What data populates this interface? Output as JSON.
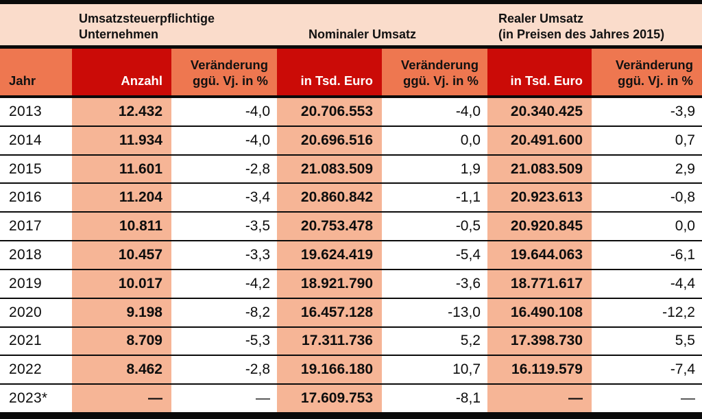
{
  "colors": {
    "header_red": "#cb0b07",
    "header_orange": "#ee7750",
    "column_salmon": "#f6b596",
    "band_pink": "#fadccb",
    "line_black": "#0a0a0a",
    "text_dark": "#0d0d0d",
    "text_white": "#ffffff"
  },
  "header_band": {
    "group_unternehmen": "Umsatzsteuerpflichtige\nUnternehmen",
    "group_nominal": "Nominaler Umsatz",
    "group_real": "Realer Umsatz\n(in Preisen des Jahres 2015)"
  },
  "columns": {
    "jahr": "Jahr",
    "anzahl": "Anzahl",
    "change": "Veränderung\nggü. Vj. in %",
    "tsd_euro": "in Tsd. Euro"
  },
  "rows": [
    {
      "year": "2013",
      "anzahl": "12.432",
      "anzahl_change": "-4,0",
      "nominal": "20.706.553",
      "nominal_change": "-4,0",
      "real": "20.340.425",
      "real_change": "-3,9"
    },
    {
      "year": "2014",
      "anzahl": "11.934",
      "anzahl_change": "-4,0",
      "nominal": "20.696.516",
      "nominal_change": "0,0",
      "real": "20.491.600",
      "real_change": "0,7"
    },
    {
      "year": "2015",
      "anzahl": "11.601",
      "anzahl_change": "-2,8",
      "nominal": "21.083.509",
      "nominal_change": "1,9",
      "real": "21.083.509",
      "real_change": "2,9"
    },
    {
      "year": "2016",
      "anzahl": "11.204",
      "anzahl_change": "-3,4",
      "nominal": "20.860.842",
      "nominal_change": "-1,1",
      "real": "20.923.613",
      "real_change": "-0,8"
    },
    {
      "year": "2017",
      "anzahl": "10.811",
      "anzahl_change": "-3,5",
      "nominal": "20.753.478",
      "nominal_change": "-0,5",
      "real": "20.920.845",
      "real_change": "0,0"
    },
    {
      "year": "2018",
      "anzahl": "10.457",
      "anzahl_change": "-3,3",
      "nominal": "19.624.419",
      "nominal_change": "-5,4",
      "real": "19.644.063",
      "real_change": "-6,1"
    },
    {
      "year": "2019",
      "anzahl": "10.017",
      "anzahl_change": "-4,2",
      "nominal": "18.921.790",
      "nominal_change": "-3,6",
      "real": "18.771.617",
      "real_change": "-4,4"
    },
    {
      "year": "2020",
      "anzahl": "9.198",
      "anzahl_change": "-8,2",
      "nominal": "16.457.128",
      "nominal_change": "-13,0",
      "real": "16.490.108",
      "real_change": "-12,2"
    },
    {
      "year": "2021",
      "anzahl": "8.709",
      "anzahl_change": "-5,3",
      "nominal": "17.311.736",
      "nominal_change": "5,2",
      "real": "17.398.730",
      "real_change": "5,5"
    },
    {
      "year": "2022",
      "anzahl": "8.462",
      "anzahl_change": "-2,8",
      "nominal": "19.166.180",
      "nominal_change": "10,7",
      "real": "16.119.579",
      "real_change": "-7,4"
    },
    {
      "year": "2023*",
      "anzahl": "—",
      "anzahl_change": "—",
      "nominal": "17.609.753",
      "nominal_change": "-8,1",
      "real": "—",
      "real_change": "—"
    }
  ],
  "chart_data": {
    "type": "table",
    "title": "Umsatzsteuerpflichtige Unternehmen, Nominaler Umsatz, Realer Umsatz (in Preisen des Jahres 2015)",
    "categories": [
      "2013",
      "2014",
      "2015",
      "2016",
      "2017",
      "2018",
      "2019",
      "2020",
      "2021",
      "2022",
      "2023*"
    ],
    "series": [
      {
        "name": "Umsatzsteuerpflichtige Unternehmen – Anzahl",
        "values": [
          12432,
          11934,
          11601,
          11204,
          10811,
          10457,
          10017,
          9198,
          8709,
          8462,
          null
        ]
      },
      {
        "name": "Umsatzsteuerpflichtige Unternehmen – Veränderung ggü. Vj. in %",
        "values": [
          -4.0,
          -4.0,
          -2.8,
          -3.4,
          -3.5,
          -3.3,
          -4.2,
          -8.2,
          -5.3,
          -2.8,
          null
        ]
      },
      {
        "name": "Nominaler Umsatz – in Tsd. Euro",
        "values": [
          20706553,
          20696516,
          21083509,
          20860842,
          20753478,
          19624419,
          18921790,
          16457128,
          17311736,
          19166180,
          17609753
        ]
      },
      {
        "name": "Nominaler Umsatz – Veränderung ggü. Vj. in %",
        "values": [
          -4.0,
          0.0,
          1.9,
          -1.1,
          -0.5,
          -5.4,
          -3.6,
          -13.0,
          5.2,
          10.7,
          -8.1
        ]
      },
      {
        "name": "Realer Umsatz (in Preisen des Jahres 2015) – in Tsd. Euro",
        "values": [
          20340425,
          20491600,
          21083509,
          20923613,
          20920845,
          19644063,
          18771617,
          16490108,
          17398730,
          16119579,
          null
        ]
      },
      {
        "name": "Realer Umsatz – Veränderung ggü. Vj. in %",
        "values": [
          -3.9,
          0.7,
          2.9,
          -0.8,
          0.0,
          -6.1,
          -4.4,
          -12.2,
          5.5,
          -7.4,
          null
        ]
      }
    ],
    "layout": "data table, 7 columns, salmon-shaded value columns, red/orange header cells"
  }
}
